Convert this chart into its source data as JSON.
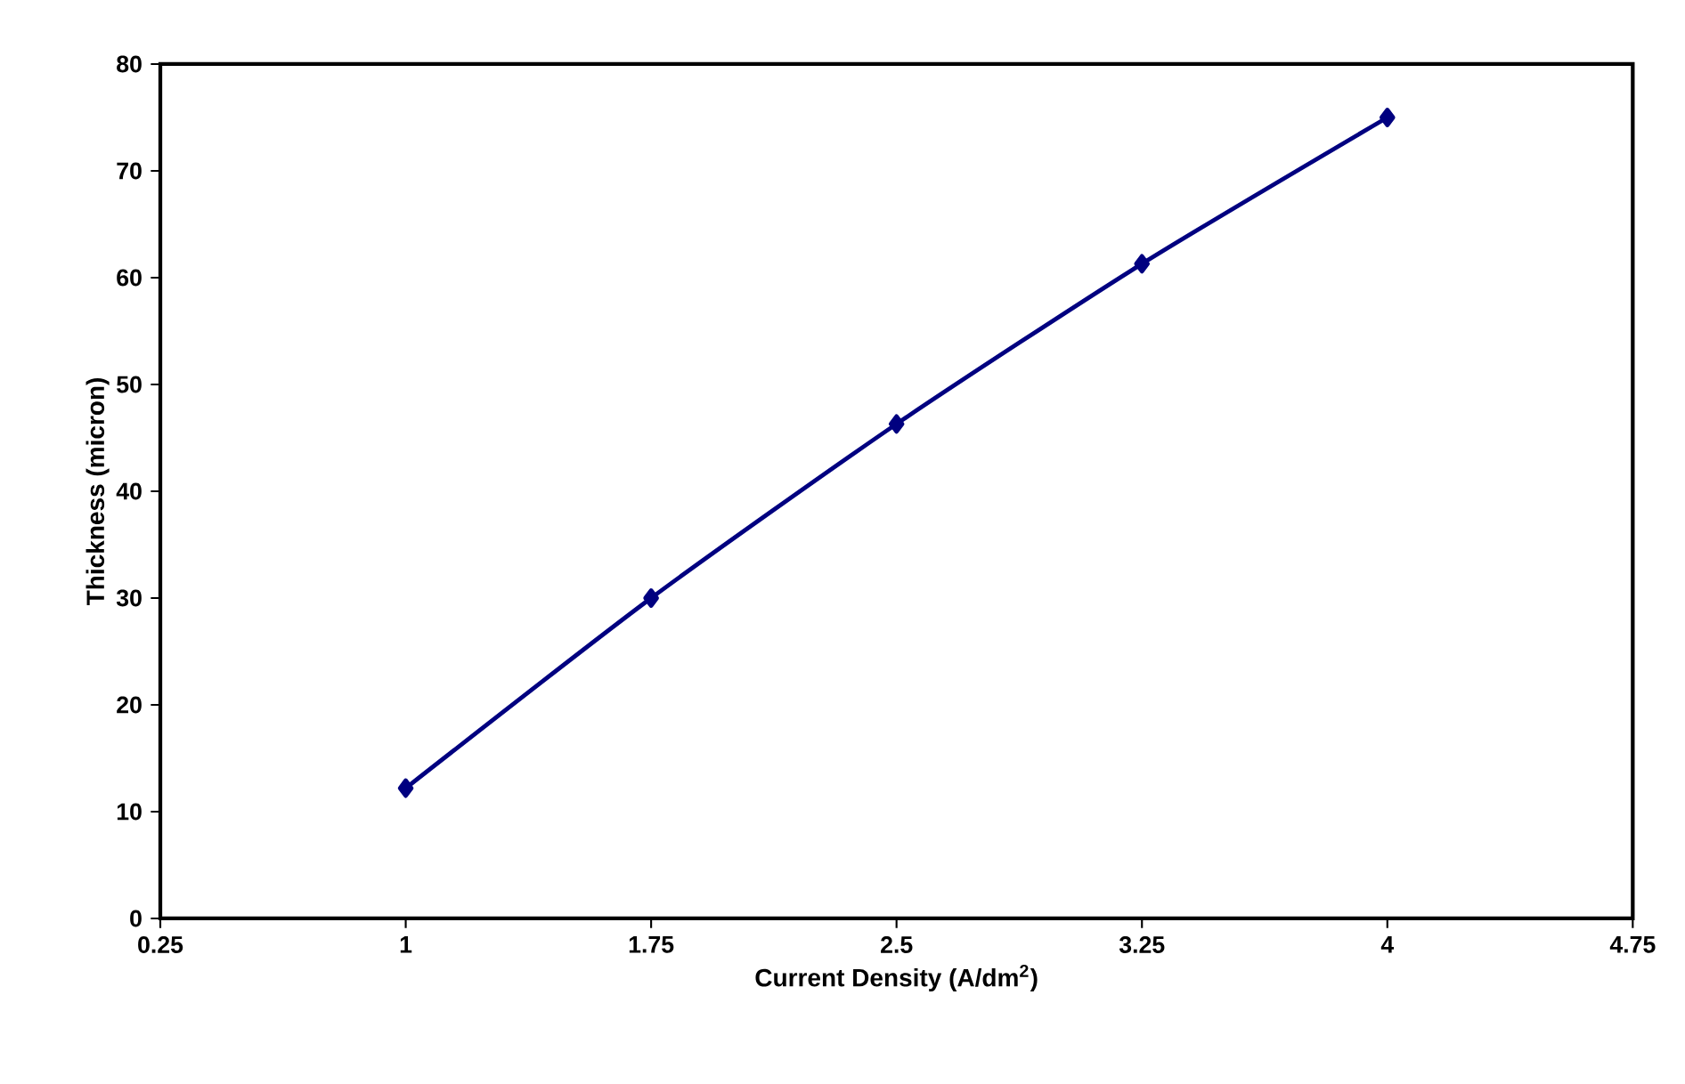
{
  "chart_data": {
    "type": "line",
    "xlabel": "Current Density (A/dm$^{2}$)",
    "ylabel": "Thickness (micron)",
    "x": [
      1,
      1.75,
      2.5,
      3.25,
      4
    ],
    "series": [
      {
        "color": "#000080",
        "values": [
          12.2,
          30,
          46.3,
          61.3,
          75
        ]
      }
    ],
    "xlim": [
      0.25,
      4.75
    ],
    "xticks": [
      0.25,
      1,
      1.75,
      2.5,
      3.25,
      4,
      4.75
    ],
    "ylim": [
      0,
      80
    ],
    "yticks": [
      0,
      10,
      20,
      30,
      40,
      50,
      60,
      70,
      80
    ],
    "grid": false,
    "marker": "diamond",
    "line_style": "solid"
  }
}
